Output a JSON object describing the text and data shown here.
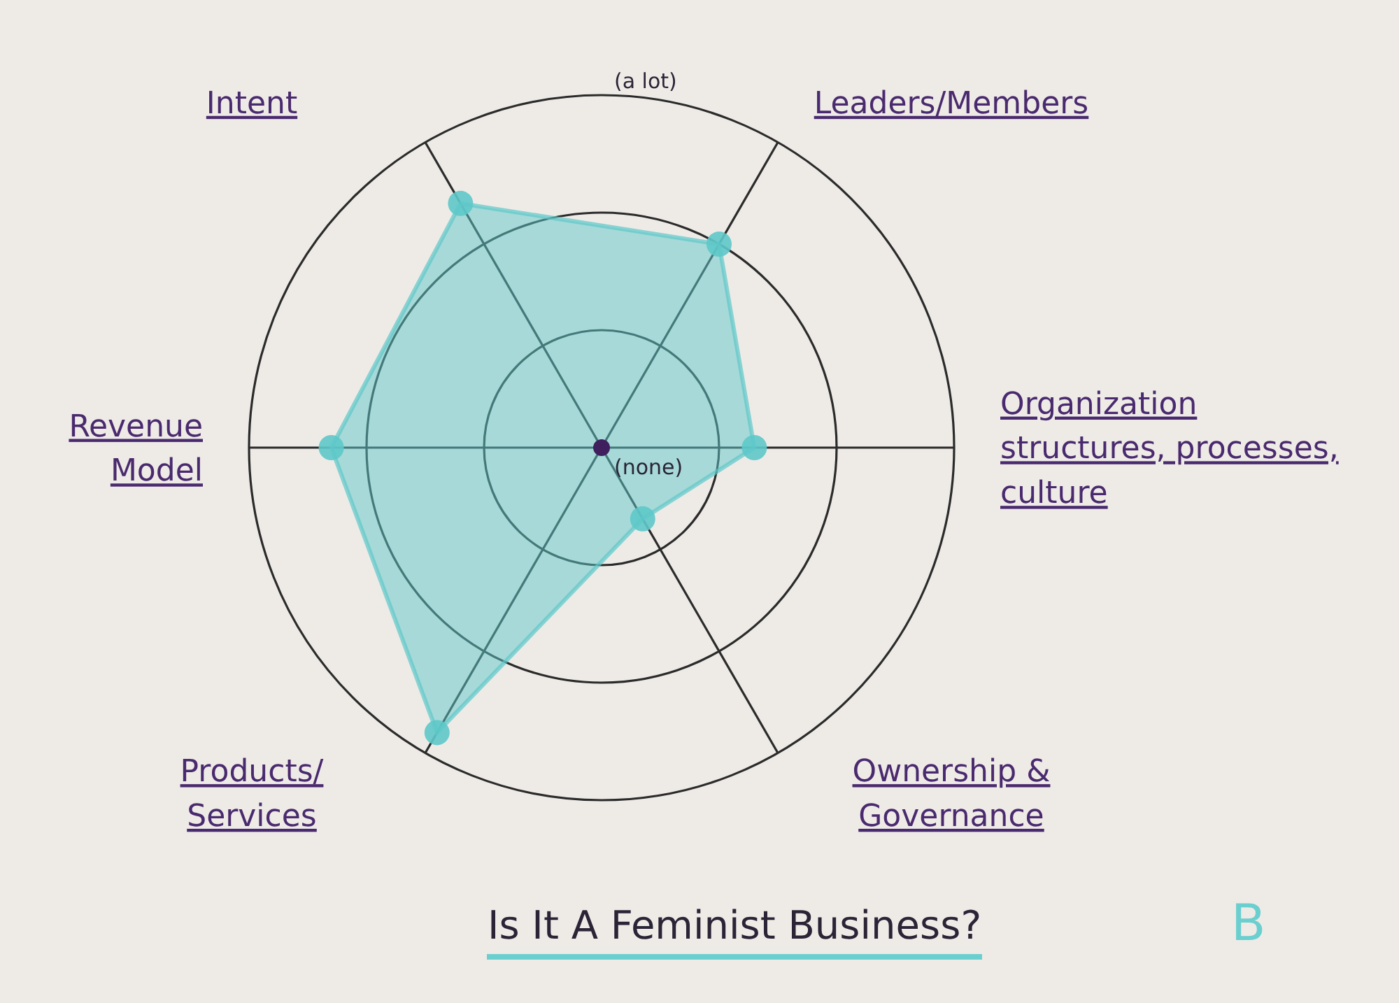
{
  "chart_data": {
    "type": "radar",
    "title": "Is It A Feminist Business?",
    "categories": [
      "Leaders/Members",
      "Organization\nstructures, processes, culture",
      "Ownership &\nGovernance",
      "Products/\nServices",
      "Revenue\nModel",
      "Intent"
    ],
    "series": [
      {
        "color": "#5ec8c9",
        "values": [
          2.0,
          1.3,
          0.7,
          2.8,
          2.3,
          2.4
        ]
      }
    ],
    "ylim": [
      0,
      3
    ],
    "yticks": [
      {
        "value": 0,
        "label": "(none)"
      },
      {
        "value": 3,
        "label": "(a lot)"
      }
    ],
    "grid": true,
    "marker": "circle",
    "annotations": [
      "B"
    ]
  }
}
